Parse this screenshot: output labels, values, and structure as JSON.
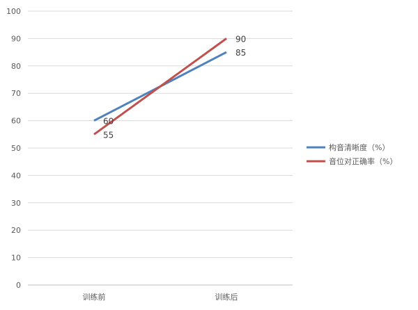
{
  "chart_data": {
    "type": "line",
    "categories": [
      "训练前",
      "训练后"
    ],
    "series": [
      {
        "name": "构音清晰度（%）",
        "values": [
          60,
          85
        ],
        "color": "#4F81BD"
      },
      {
        "name": "音位对正确率（%）",
        "values": [
          55,
          90
        ],
        "color": "#C0504D"
      }
    ],
    "yticks": [
      0,
      10,
      20,
      30,
      40,
      50,
      60,
      70,
      80,
      90,
      100
    ],
    "ylim": [
      0,
      100
    ],
    "grid": true,
    "legend_position": "right",
    "title": "",
    "xlabel": "",
    "ylabel": ""
  }
}
